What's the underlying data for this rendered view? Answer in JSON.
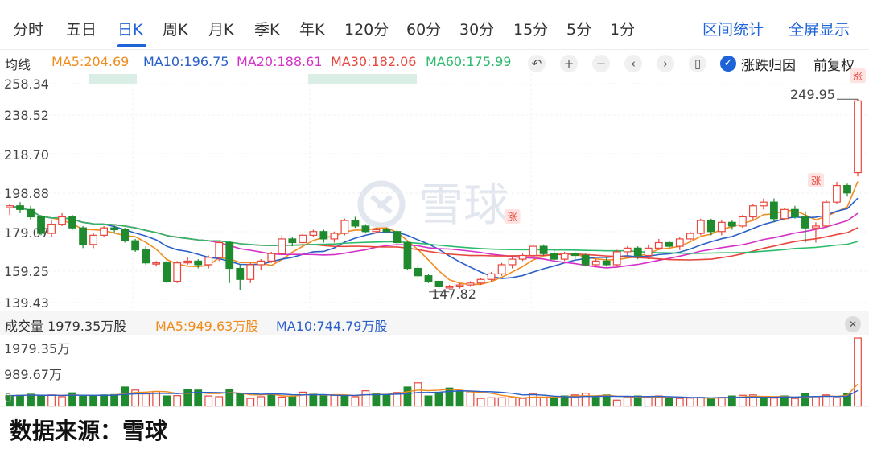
{
  "tabs": [
    "分时",
    "五日",
    "日K",
    "周K",
    "月K",
    "季K",
    "年K",
    "120分",
    "60分",
    "30分",
    "15分",
    "5分",
    "1分"
  ],
  "active_tab": "日K",
  "right_links": [
    "区间统计",
    "全屏显示"
  ],
  "ma_bar": {
    "label": "均线",
    "items": [
      {
        "text": "MA5:204.69",
        "color": "#f08c1e"
      },
      {
        "text": "MA10:196.75",
        "color": "#2a5fc8"
      },
      {
        "text": "MA20:188.61",
        "color": "#d530c8"
      },
      {
        "text": "MA30:182.06",
        "color": "#e8463c"
      },
      {
        "text": "MA60:175.99",
        "color": "#2cbb6b"
      }
    ],
    "tool_icons": [
      "undo-icon",
      "zoom-in-icon",
      "zoom-out-icon",
      "prev-icon",
      "next-icon",
      "candle-icon"
    ],
    "tool_glyphs": [
      "↶",
      "+",
      "−",
      "‹",
      "›",
      "▯"
    ],
    "checkbox_label": "涨跌归因",
    "adjust_label": "前复权"
  },
  "price_axis": [
    "258.34",
    "238.52",
    "218.70",
    "198.88",
    "179.07",
    "159.25",
    "139.43"
  ],
  "annotations": {
    "high": "249.95",
    "low": "147.82",
    "rise_tag": "涨"
  },
  "volume": {
    "label": "成交量 1979.35万股",
    "ma5": "MA5:949.63万股",
    "ma10": "MA10:744.79万股",
    "axis": [
      "1979.35万",
      "989.67万",
      "0"
    ]
  },
  "watermark": "雪球",
  "footer": "数据来源：雪球",
  "colors": {
    "up": "#e8463c",
    "down": "#1f8a2e",
    "accent": "#1e64d8"
  },
  "chart_data": {
    "type": "candlestick",
    "price_range": [
      139.43,
      258.34
    ],
    "volume_max": 1979.35,
    "candles": [
      [
        191,
        192,
        187,
        193
      ],
      [
        192,
        190,
        188,
        194
      ],
      [
        190,
        186,
        184,
        192
      ],
      [
        186,
        177,
        176,
        187
      ],
      [
        177,
        182,
        175,
        184
      ],
      [
        182,
        186,
        181,
        188
      ],
      [
        186,
        180,
        179,
        187
      ],
      [
        180,
        171,
        169,
        181
      ],
      [
        171,
        176,
        169,
        177
      ],
      [
        176,
        180,
        175,
        181
      ],
      [
        180,
        179,
        177,
        182
      ],
      [
        179,
        173,
        172,
        180
      ],
      [
        173,
        168,
        167,
        174
      ],
      [
        168,
        161,
        160,
        170
      ],
      [
        161,
        161,
        159,
        162
      ],
      [
        161,
        151,
        150,
        162
      ],
      [
        151,
        161,
        150,
        162
      ],
      [
        161,
        162,
        160,
        164
      ],
      [
        162,
        160,
        158,
        163
      ],
      [
        160,
        164,
        158,
        165
      ],
      [
        164,
        172,
        162,
        173
      ],
      [
        172,
        158,
        150,
        173
      ],
      [
        158,
        152,
        146,
        160
      ],
      [
        152,
        160,
        150,
        161
      ],
      [
        160,
        162,
        157,
        163
      ],
      [
        162,
        166,
        161,
        167
      ],
      [
        166,
        174,
        165,
        176
      ],
      [
        174,
        172,
        170,
        175
      ],
      [
        172,
        176,
        170,
        177
      ],
      [
        176,
        178,
        175,
        179
      ],
      [
        178,
        174,
        172,
        179
      ],
      [
        174,
        177,
        172,
        178
      ],
      [
        177,
        184,
        176,
        185
      ],
      [
        184,
        181,
        180,
        186
      ],
      [
        181,
        178,
        177,
        182
      ],
      [
        178,
        179,
        177,
        180
      ],
      [
        179,
        178,
        177,
        180
      ],
      [
        178,
        172,
        170,
        179
      ],
      [
        172,
        158,
        157,
        173
      ],
      [
        158,
        154,
        153,
        160
      ],
      [
        154,
        151,
        150,
        155
      ],
      [
        151,
        148,
        147,
        151
      ],
      [
        148,
        148,
        147,
        149
      ],
      [
        148,
        149,
        147,
        150
      ],
      [
        149,
        150,
        148,
        151
      ],
      [
        150,
        152,
        149,
        153
      ],
      [
        152,
        155,
        151,
        156
      ],
      [
        155,
        160,
        154,
        161
      ],
      [
        160,
        163,
        158,
        164
      ],
      [
        163,
        165,
        162,
        166
      ],
      [
        165,
        170,
        164,
        171
      ],
      [
        170,
        166,
        165,
        171
      ],
      [
        166,
        163,
        162,
        168
      ],
      [
        163,
        166,
        162,
        167
      ],
      [
        166,
        165,
        163,
        167
      ],
      [
        165,
        160,
        159,
        166
      ],
      [
        160,
        162,
        159,
        163
      ],
      [
        162,
        160,
        159,
        164
      ],
      [
        160,
        167,
        159,
        168
      ],
      [
        167,
        169,
        165,
        170
      ],
      [
        169,
        165,
        163,
        170
      ],
      [
        165,
        169,
        163,
        171
      ],
      [
        169,
        172,
        168,
        174
      ],
      [
        172,
        170,
        169,
        173
      ],
      [
        170,
        174,
        168,
        175
      ],
      [
        174,
        177,
        173,
        178
      ],
      [
        177,
        184,
        176,
        185
      ],
      [
        184,
        178,
        176,
        185
      ],
      [
        178,
        183,
        176,
        184
      ],
      [
        183,
        181,
        179,
        184
      ],
      [
        181,
        186,
        180,
        187
      ],
      [
        186,
        192,
        184,
        193
      ],
      [
        192,
        194,
        190,
        196
      ],
      [
        194,
        185,
        183,
        196
      ],
      [
        185,
        190,
        184,
        191
      ],
      [
        190,
        186,
        185,
        192
      ],
      [
        186,
        180,
        172,
        189
      ],
      [
        180,
        181,
        172,
        183
      ],
      [
        181,
        194,
        180,
        195
      ],
      [
        194,
        203,
        193,
        205
      ],
      [
        203,
        199,
        197,
        204
      ],
      [
        210,
        249,
        208,
        250
      ]
    ],
    "volumes": [
      [
        310,
        "down"
      ],
      [
        320,
        "down"
      ],
      [
        350,
        "down"
      ],
      [
        300,
        "down"
      ],
      [
        330,
        "up"
      ],
      [
        280,
        "up"
      ],
      [
        390,
        "down"
      ],
      [
        290,
        "down"
      ],
      [
        300,
        "down"
      ],
      [
        330,
        "down"
      ],
      [
        340,
        "down"
      ],
      [
        560,
        "down"
      ],
      [
        470,
        "up"
      ],
      [
        360,
        "up"
      ],
      [
        430,
        "up"
      ],
      [
        300,
        "down"
      ],
      [
        310,
        "up"
      ],
      [
        480,
        "down"
      ],
      [
        470,
        "down"
      ],
      [
        300,
        "up"
      ],
      [
        280,
        "up"
      ],
      [
        480,
        "down"
      ],
      [
        380,
        "down"
      ],
      [
        230,
        "up"
      ],
      [
        280,
        "up"
      ],
      [
        380,
        "down"
      ],
      [
        270,
        "up"
      ],
      [
        300,
        "down"
      ],
      [
        410,
        "up"
      ],
      [
        350,
        "down"
      ],
      [
        300,
        "down"
      ],
      [
        320,
        "up"
      ],
      [
        300,
        "down"
      ],
      [
        280,
        "up"
      ],
      [
        450,
        "up"
      ],
      [
        380,
        "down"
      ],
      [
        330,
        "down"
      ],
      [
        400,
        "up"
      ],
      [
        560,
        "down"
      ],
      [
        680,
        "up"
      ],
      [
        300,
        "down"
      ],
      [
        400,
        "down"
      ],
      [
        530,
        "down"
      ],
      [
        450,
        "down"
      ],
      [
        420,
        "up"
      ],
      [
        230,
        "up"
      ],
      [
        250,
        "up"
      ],
      [
        250,
        "up"
      ],
      [
        250,
        "up"
      ],
      [
        230,
        "up"
      ],
      [
        370,
        "up"
      ],
      [
        250,
        "up"
      ],
      [
        260,
        "down"
      ],
      [
        300,
        "down"
      ],
      [
        330,
        "up"
      ],
      [
        380,
        "up"
      ],
      [
        260,
        "down"
      ],
      [
        330,
        "down"
      ],
      [
        180,
        "up"
      ],
      [
        250,
        "up"
      ],
      [
        300,
        "down"
      ],
      [
        260,
        "up"
      ],
      [
        300,
        "up"
      ],
      [
        220,
        "down"
      ],
      [
        230,
        "up"
      ],
      [
        240,
        "up"
      ],
      [
        260,
        "up"
      ],
      [
        230,
        "down"
      ],
      [
        260,
        "up"
      ],
      [
        300,
        "down"
      ],
      [
        320,
        "up"
      ],
      [
        330,
        "up"
      ],
      [
        230,
        "down"
      ],
      [
        240,
        "up"
      ],
      [
        300,
        "down"
      ],
      [
        230,
        "up"
      ],
      [
        360,
        "down"
      ],
      [
        280,
        "up"
      ],
      [
        330,
        "up"
      ],
      [
        250,
        "up"
      ],
      [
        380,
        "down"
      ],
      [
        1979,
        "up"
      ]
    ]
  }
}
